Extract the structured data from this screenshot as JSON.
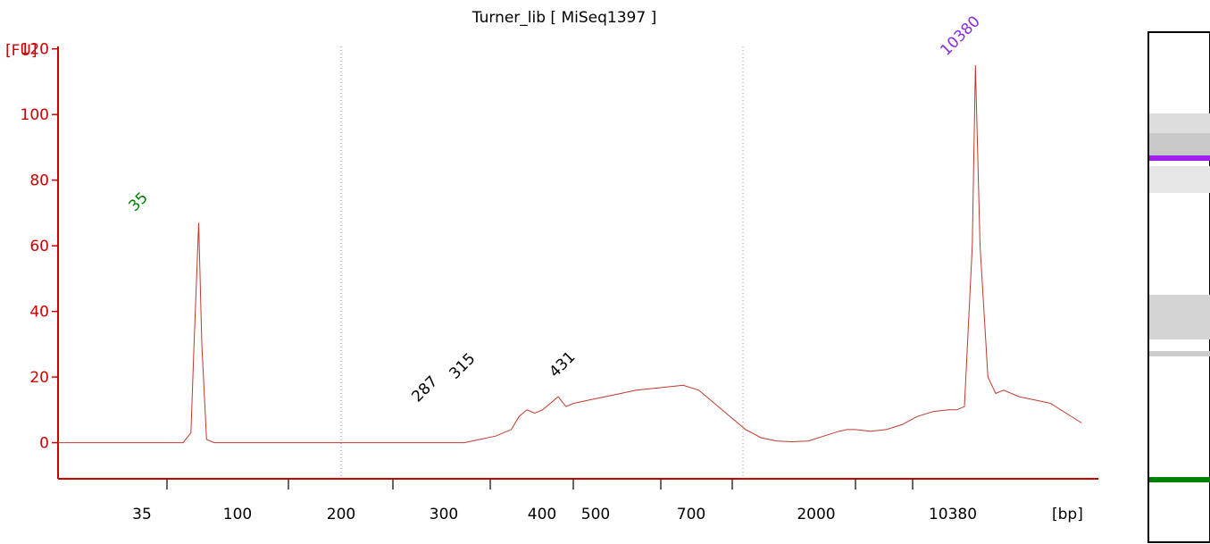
{
  "chart_data": {
    "type": "line",
    "title": "Turner_lib  [ MiSeq1397 ]",
    "ylabel": "[FU]",
    "xlabel": "[bp]",
    "ylim": [
      -11,
      124
    ],
    "yticks": [
      0,
      20,
      40,
      60,
      80,
      100,
      120
    ],
    "xticks": [
      "35",
      "100",
      "200",
      "300",
      "400",
      "500",
      "700",
      "2000",
      "10380"
    ],
    "peaks": [
      {
        "label": "35",
        "value": 67,
        "color": "#008000"
      },
      {
        "label": "287",
        "value": 10,
        "color": "#000000"
      },
      {
        "label": "315",
        "value": 17,
        "color": "#000000"
      },
      {
        "label": "431",
        "value": 17.5,
        "color": "#000000"
      },
      {
        "label": "10380",
        "value": 115,
        "color": "#8a2be2"
      }
    ],
    "series": [
      {
        "values": [
          [
            0,
            0
          ],
          [
            5,
            0
          ],
          [
            10,
            0
          ],
          [
            15,
            0
          ],
          [
            20,
            0
          ],
          [
            25,
            0
          ],
          [
            30,
            0
          ],
          [
            35,
            0
          ],
          [
            40,
            0
          ],
          [
            45,
            0
          ],
          [
            50,
            0
          ],
          [
            60,
            0
          ],
          [
            70,
            0
          ],
          [
            80,
            0
          ],
          [
            85,
            3
          ],
          [
            87,
            30
          ],
          [
            90,
            67
          ],
          [
            92,
            30
          ],
          [
            95,
            1
          ],
          [
            100,
            0
          ],
          [
            120,
            0
          ],
          [
            140,
            0
          ],
          [
            160,
            0
          ],
          [
            180,
            0
          ],
          [
            200,
            0
          ],
          [
            220,
            0
          ],
          [
            240,
            0
          ],
          [
            260,
            0
          ],
          [
            270,
            1
          ],
          [
            280,
            2
          ],
          [
            290,
            4
          ],
          [
            295,
            8
          ],
          [
            300,
            10
          ],
          [
            305,
            9
          ],
          [
            310,
            10
          ],
          [
            315,
            12
          ],
          [
            320,
            14
          ],
          [
            325,
            11
          ],
          [
            330,
            12
          ],
          [
            340,
            13
          ],
          [
            350,
            14
          ],
          [
            360,
            15
          ],
          [
            370,
            16
          ],
          [
            380,
            16.5
          ],
          [
            390,
            17
          ],
          [
            400,
            17.5
          ],
          [
            410,
            16
          ],
          [
            420,
            12
          ],
          [
            430,
            8
          ],
          [
            440,
            4
          ],
          [
            450,
            1.5
          ],
          [
            460,
            0.5
          ],
          [
            470,
            0.3
          ],
          [
            480,
            0.5
          ],
          [
            490,
            2
          ],
          [
            500,
            3.5
          ],
          [
            505,
            4
          ],
          [
            510,
            4
          ],
          [
            520,
            3.5
          ],
          [
            530,
            4
          ],
          [
            540,
            5.5
          ],
          [
            550,
            8
          ],
          [
            560,
            9.5
          ],
          [
            570,
            10
          ],
          [
            575,
            10
          ],
          [
            580,
            11
          ],
          [
            585,
            60
          ],
          [
            587,
            115
          ],
          [
            590,
            60
          ],
          [
            595,
            20
          ],
          [
            600,
            15
          ],
          [
            605,
            16
          ],
          [
            615,
            14
          ],
          [
            625,
            13
          ],
          [
            635,
            12
          ],
          [
            645,
            9
          ],
          [
            655,
            6
          ]
        ]
      }
    ],
    "colors": {
      "axis": "#cc0000",
      "trace": "#c0392b",
      "marker_purple": "#a020f0",
      "marker_green": "#008000"
    }
  }
}
